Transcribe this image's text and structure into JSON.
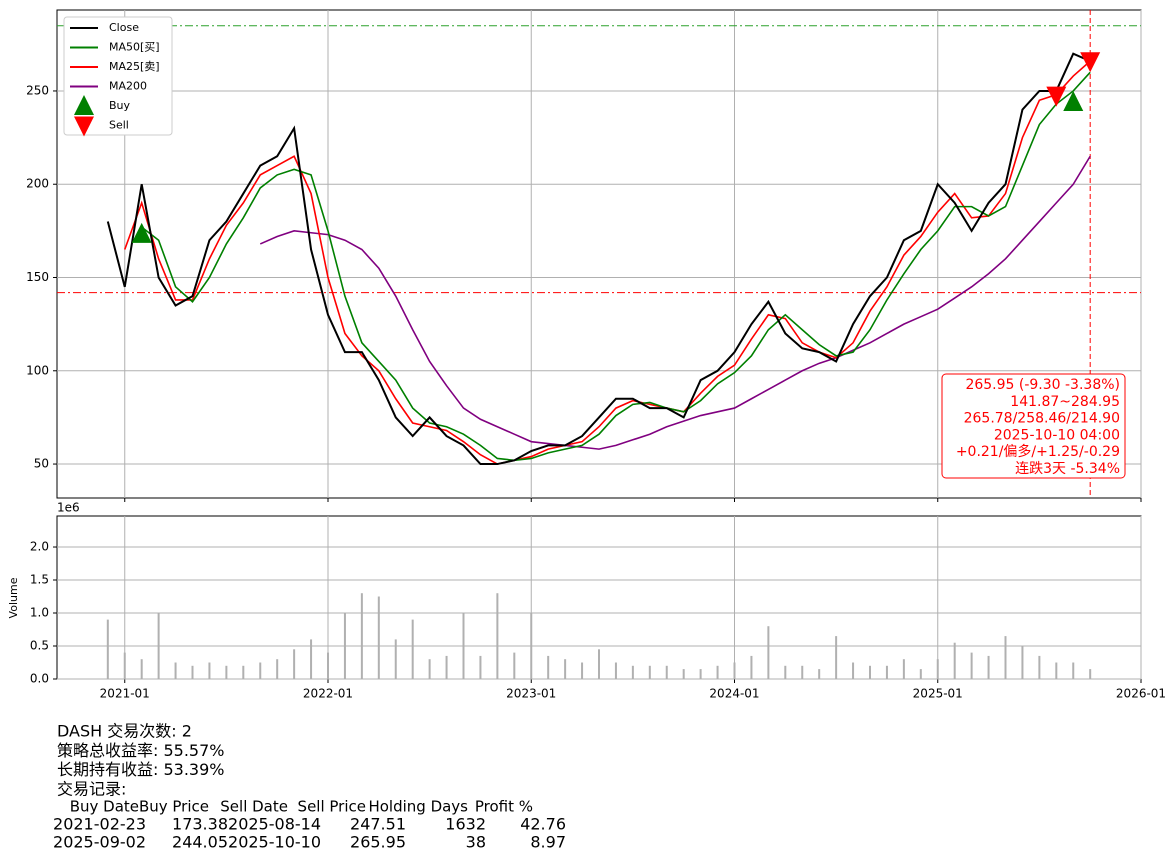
{
  "chart_data": [
    {
      "type": "line",
      "xlim": [
        "2020-09",
        "2026-01"
      ],
      "xticks": [
        "2021-01",
        "2022-01",
        "2023-01",
        "2024-01",
        "2025-01",
        "2026-01"
      ],
      "ylim": [
        31.8,
        293.4
      ],
      "yticks": [
        50,
        100,
        150,
        200,
        250
      ],
      "grid": true,
      "legend": "upper left",
      "x": [
        "2020-12",
        "2021-01",
        "2021-02",
        "2021-03",
        "2021-04",
        "2021-05",
        "2021-06",
        "2021-07",
        "2021-08",
        "2021-09",
        "2021-10",
        "2021-11",
        "2021-12",
        "2022-01",
        "2022-02",
        "2022-03",
        "2022-04",
        "2022-05",
        "2022-06",
        "2022-07",
        "2022-08",
        "2022-09",
        "2022-10",
        "2022-11",
        "2022-12",
        "2023-01",
        "2023-02",
        "2023-03",
        "2023-04",
        "2023-05",
        "2023-06",
        "2023-07",
        "2023-08",
        "2023-09",
        "2023-10",
        "2023-11",
        "2023-12",
        "2024-01",
        "2024-02",
        "2024-03",
        "2024-04",
        "2024-05",
        "2024-06",
        "2024-07",
        "2024-08",
        "2024-09",
        "2024-10",
        "2024-11",
        "2024-12",
        "2025-01",
        "2025-02",
        "2025-03",
        "2025-04",
        "2025-05",
        "2025-06",
        "2025-07",
        "2025-08",
        "2025-09",
        "2025-10"
      ],
      "series": [
        {
          "name": "Close",
          "color": "#000000",
          "values": [
            180,
            145,
            200,
            150,
            135,
            140,
            170,
            180,
            195,
            210,
            215,
            230,
            165,
            130,
            110,
            110,
            95,
            75,
            65,
            75,
            65,
            60,
            50,
            50,
            52,
            57,
            60,
            60,
            65,
            75,
            85,
            85,
            80,
            80,
            75,
            95,
            100,
            110,
            125,
            137,
            120,
            112,
            110,
            105,
            125,
            140,
            150,
            170,
            175,
            200,
            190,
            175,
            190,
            200,
            240,
            250,
            250,
            270,
            266
          ]
        },
        {
          "name": "MA50[买]",
          "color": "#008000",
          "values": [
            null,
            null,
            177,
            170,
            145,
            137,
            150,
            168,
            182,
            198,
            205,
            208,
            205,
            175,
            140,
            115,
            105,
            95,
            80,
            72,
            70,
            66,
            60,
            53,
            52,
            53,
            56,
            58,
            60,
            66,
            76,
            82,
            83,
            80,
            78,
            84,
            93,
            99,
            108,
            122,
            130,
            122,
            114,
            108,
            110,
            122,
            138,
            152,
            165,
            175,
            188,
            188,
            183,
            188,
            210,
            232,
            243,
            250,
            260
          ]
        },
        {
          "name": "MA25[卖]",
          "color": "#ff0000",
          "values": [
            null,
            165,
            190,
            160,
            138,
            138,
            160,
            178,
            190,
            205,
            210,
            215,
            195,
            150,
            120,
            108,
            100,
            85,
            72,
            70,
            68,
            62,
            55,
            50,
            52,
            54,
            58,
            60,
            62,
            70,
            80,
            84,
            82,
            80,
            78,
            88,
            97,
            103,
            117,
            130,
            128,
            115,
            110,
            107,
            115,
            132,
            145,
            162,
            172,
            185,
            195,
            182,
            183,
            195,
            225,
            245,
            248,
            258,
            266
          ]
        },
        {
          "name": "MA200",
          "color": "#800080",
          "values": [
            null,
            null,
            null,
            null,
            null,
            null,
            null,
            null,
            null,
            168,
            172,
            175,
            174,
            173,
            170,
            165,
            155,
            140,
            122,
            105,
            92,
            80,
            74,
            70,
            66,
            62,
            61,
            60,
            59,
            58,
            60,
            63,
            66,
            70,
            73,
            76,
            78,
            80,
            85,
            90,
            95,
            100,
            104,
            107,
            111,
            115,
            120,
            125,
            129,
            133,
            139,
            145,
            152,
            160,
            170,
            180,
            190,
            200,
            215
          ]
        }
      ],
      "markers": [
        {
          "name": "Buy",
          "color": "#008000",
          "shape": "up",
          "x": [
            "2021-02",
            "2025-09"
          ],
          "values": [
            173.38,
            244.05
          ]
        },
        {
          "name": "Sell",
          "color": "#ff0000",
          "shape": "down",
          "x": [
            "2025-08",
            "2025-10"
          ],
          "values": [
            247.51,
            265.95
          ]
        }
      ],
      "hlines": [
        {
          "value": 284.95,
          "color": "#2ca02c"
        },
        {
          "value": 141.87,
          "color": "#ff0000"
        }
      ],
      "vline": {
        "x": "2025-10",
        "color": "#ff0000"
      },
      "annotation": {
        "color": "#ff0000",
        "lines": [
          "265.95 (-9.30 -3.38%)",
          "141.87~284.95",
          "265.78/258.46/214.90",
          "2025-10-10 04:00",
          "+0.21/偏多/+1.25/-0.29",
          "连跌3天 -5.34%"
        ]
      }
    },
    {
      "type": "bar",
      "y_label": "Volume",
      "offset_label": "1e6",
      "color": "#b0b0b0",
      "grid": true,
      "xlim": [
        "2020-09",
        "2026-01"
      ],
      "xticks": [
        "2021-01",
        "2022-01",
        "2023-01",
        "2024-01",
        "2025-01",
        "2026-01"
      ],
      "ylim": [
        0,
        2470000
      ],
      "yticks": [
        {
          "value": 0,
          "label": "0.0"
        },
        {
          "value": 500000,
          "label": "0.5"
        },
        {
          "value": 1000000,
          "label": "1.0"
        },
        {
          "value": 1500000,
          "label": "1.5"
        },
        {
          "value": 2000000,
          "label": "2.0"
        }
      ],
      "x": [
        "2020-12",
        "2021-01",
        "2021-02",
        "2021-03",
        "2021-04",
        "2021-05",
        "2021-06",
        "2021-07",
        "2021-08",
        "2021-09",
        "2021-10",
        "2021-11",
        "2021-12",
        "2022-01",
        "2022-02",
        "2022-03",
        "2022-04",
        "2022-05",
        "2022-06",
        "2022-07",
        "2022-08",
        "2022-09",
        "2022-10",
        "2022-11",
        "2022-12",
        "2023-01",
        "2023-02",
        "2023-03",
        "2023-04",
        "2023-05",
        "2023-06",
        "2023-07",
        "2023-08",
        "2023-09",
        "2023-10",
        "2023-11",
        "2023-12",
        "2024-01",
        "2024-02",
        "2024-03",
        "2024-04",
        "2024-05",
        "2024-06",
        "2024-07",
        "2024-08",
        "2024-09",
        "2024-10",
        "2024-11",
        "2024-12",
        "2025-01",
        "2025-02",
        "2025-03",
        "2025-04",
        "2025-05",
        "2025-06",
        "2025-07",
        "2025-08",
        "2025-09",
        "2025-10"
      ],
      "values": [
        900000,
        400000,
        300000,
        1000000,
        250000,
        200000,
        250000,
        200000,
        200000,
        250000,
        300000,
        450000,
        600000,
        400000,
        1000000,
        1300000,
        1250000,
        600000,
        900000,
        300000,
        350000,
        1000000,
        350000,
        1300000,
        400000,
        1000000,
        350000,
        300000,
        250000,
        450000,
        250000,
        200000,
        200000,
        200000,
        150000,
        150000,
        200000,
        250000,
        350000,
        800000,
        200000,
        200000,
        150000,
        650000,
        250000,
        200000,
        200000,
        300000,
        150000,
        300000,
        550000,
        400000,
        350000,
        650000,
        500000,
        350000,
        250000,
        250000,
        150000
      ]
    }
  ],
  "report": {
    "lines": [
      "DASH 交易次数: 2",
      "策略总收益率: 55.57%",
      "长期持有收益: 53.39%",
      "交易记录:"
    ],
    "columns": [
      "Buy Date",
      "Buy Price",
      "Sell Date",
      "Sell Price",
      "Holding Days",
      "Profit %"
    ],
    "rows": [
      [
        "2021-02-23",
        173.38,
        "2025-08-14",
        247.51,
        1632,
        42.76
      ],
      [
        "2025-09-02",
        244.05,
        "2025-10-10",
        265.95,
        38,
        8.97
      ]
    ]
  }
}
